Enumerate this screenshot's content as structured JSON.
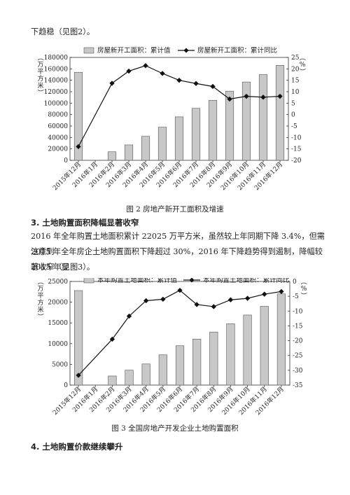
{
  "intro_text": "下趋稳（见图2）。",
  "caption1": "图 2  房地产新开工面积及增速",
  "heading3": "3. 土地购置面积降幅显著收窄",
  "paragraph3": [
    "2016 年全年购置土地面积累计 22025 万平方米，虽然较上年同期下降 3.4%，但需注意到",
    "2015 年全年房企土地购置面积下降超过 30%，2016 年下降趋势得到遏制，降幅较 2015 年显",
    "著收窄（见图3）。"
  ],
  "caption2": "图 3  全国房地产开发企业土地购置面积",
  "heading4": "4. 土地购置价款继续攀升",
  "colors": {
    "bar_fill": "#c8c8c8",
    "bar_stroke": "#555555",
    "line": "#111111"
  },
  "chart_data": [
    {
      "type": "bar",
      "title": "",
      "categories": [
        "2015年12月",
        "2016年1月",
        "2016年2月",
        "2016年3月",
        "2016年4月",
        "2016年5月",
        "2016年6月",
        "2016年7月",
        "2016年8月",
        "2016年9月",
        "2016年10月",
        "2016年11月",
        "2016年12月"
      ],
      "y_left_label": "（万平方米）",
      "y_right_label": "（%）",
      "ylim_left": [
        0,
        180000
      ],
      "yticks_left": [
        0,
        20000,
        40000,
        60000,
        80000,
        100000,
        120000,
        140000,
        160000,
        180000
      ],
      "ylim_right": [
        -20,
        25
      ],
      "yticks_right": [
        -20,
        -15,
        -10,
        -5,
        0,
        5,
        10,
        15,
        20,
        25
      ],
      "legend_position": "top",
      "series": [
        {
          "name": "房屋新开工面积：累计值",
          "kind": "bar",
          "axis": "left",
          "values": [
            154000,
            null,
            15000,
            27000,
            42000,
            58000,
            76000,
            91000,
            105000,
            121000,
            137000,
            150000,
            166000
          ]
        },
        {
          "name": "房屋新开工面积：累计同比",
          "kind": "line",
          "axis": "right",
          "values": [
            -14,
            null,
            13.7,
            19,
            21.4,
            18,
            15,
            13.6,
            12.3,
            6.8,
            8,
            7.6,
            8
          ]
        }
      ]
    },
    {
      "type": "bar",
      "title": "",
      "categories": [
        "2015年12月",
        "2016年1月",
        "2016年2月",
        "2016年3月",
        "2016年4月",
        "2016年5月",
        "2016年6月",
        "2016年7月",
        "2016年8月",
        "2016年9月",
        "2016年10月",
        "2016年11月",
        "2016年12月"
      ],
      "y_left_label": "（万平方米）",
      "y_right_label": "（%）",
      "ylim_left": [
        0,
        25000
      ],
      "yticks_left": [
        0,
        5000,
        10000,
        15000,
        20000,
        25000
      ],
      "ylim_right": [
        -35,
        0
      ],
      "yticks_right": [
        -35,
        -30,
        -25,
        -20,
        -15,
        -10,
        -5,
        0
      ],
      "legend_position": "top",
      "series": [
        {
          "name": "本年购置土地面积：累计值",
          "kind": "bar",
          "axis": "left",
          "values": [
            22800,
            null,
            2200,
            3600,
            5100,
            7300,
            9500,
            11100,
            12800,
            14800,
            16900,
            19000,
            22000
          ]
        },
        {
          "name": "本年购置土地面积：累计同比",
          "kind": "line",
          "axis": "right",
          "values": [
            -31.7,
            null,
            -19.5,
            -11.7,
            -6.5,
            -6,
            -3,
            -7.8,
            -8.5,
            -6.2,
            -5.7,
            -4.3,
            -3.4
          ]
        }
      ]
    }
  ]
}
